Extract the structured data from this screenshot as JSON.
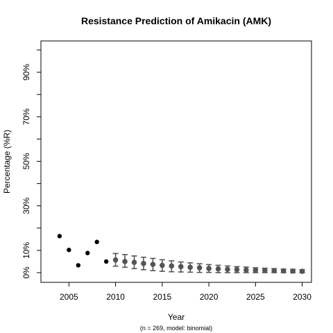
{
  "chart_data": {
    "type": "scatter",
    "title": "Resistance Prediction of Amikacin (AMK)",
    "subtitle": "(n = 269, model: binomial)",
    "xlabel": "Year",
    "ylabel": "Percentage (%R)",
    "xlim": [
      2002.0,
      2031.0
    ],
    "ylim": [
      0,
      100
    ],
    "x_ticks": [
      2005,
      2010,
      2015,
      2020,
      2025,
      2030
    ],
    "y_ticks": [
      {
        "value": 0,
        "label": "0%"
      },
      {
        "value": 10,
        "label": "10%"
      },
      {
        "value": 20,
        "label": ""
      },
      {
        "value": 30,
        "label": "30%"
      },
      {
        "value": 40,
        "label": ""
      },
      {
        "value": 50,
        "label": "50%"
      },
      {
        "value": 60,
        "label": ""
      },
      {
        "value": 70,
        "label": "70%"
      },
      {
        "value": 80,
        "label": ""
      },
      {
        "value": 90,
        "label": "90%"
      },
      {
        "value": 100,
        "label": ""
      }
    ],
    "grid": false,
    "legend": "none",
    "series": [
      {
        "kind": "observed",
        "color": "#000000",
        "points": [
          {
            "x": 2004,
            "y": 16.4
          },
          {
            "x": 2005,
            "y": 10.2
          },
          {
            "x": 2006,
            "y": 3.3
          },
          {
            "x": 2007,
            "y": 8.8
          },
          {
            "x": 2008,
            "y": 13.8
          },
          {
            "x": 2009,
            "y": 5.0
          }
        ]
      },
      {
        "kind": "predicted",
        "color": "#555555",
        "points": [
          {
            "x": 2010,
            "y": 5.7,
            "lo": 2.9,
            "hi": 8.6
          },
          {
            "x": 2011,
            "y": 5.0,
            "lo": 2.4,
            "hi": 8.1
          },
          {
            "x": 2012,
            "y": 4.6,
            "lo": 1.8,
            "hi": 7.5
          },
          {
            "x": 2013,
            "y": 4.1,
            "lo": 1.3,
            "hi": 6.9
          },
          {
            "x": 2014,
            "y": 3.7,
            "lo": 0.9,
            "hi": 6.4
          },
          {
            "x": 2015,
            "y": 3.3,
            "lo": 0.6,
            "hi": 5.8
          },
          {
            "x": 2016,
            "y": 3.0,
            "lo": 0.4,
            "hi": 5.3
          },
          {
            "x": 2017,
            "y": 2.7,
            "lo": 0.3,
            "hi": 4.8
          },
          {
            "x": 2018,
            "y": 2.4,
            "lo": 0.2,
            "hi": 4.4
          },
          {
            "x": 2019,
            "y": 2.2,
            "lo": 0.1,
            "hi": 4.0
          },
          {
            "x": 2020,
            "y": 1.9,
            "lo": 0.1,
            "hi": 3.6
          },
          {
            "x": 2021,
            "y": 1.7,
            "lo": 0.0,
            "hi": 3.3
          },
          {
            "x": 2022,
            "y": 1.5,
            "lo": 0.0,
            "hi": 3.0
          },
          {
            "x": 2023,
            "y": 1.4,
            "lo": 0.0,
            "hi": 2.7
          },
          {
            "x": 2024,
            "y": 1.2,
            "lo": 0.0,
            "hi": 2.5
          },
          {
            "x": 2025,
            "y": 1.1,
            "lo": 0.0,
            "hi": 2.2
          },
          {
            "x": 2026,
            "y": 1.0,
            "lo": 0.0,
            "hi": 2.0
          },
          {
            "x": 2027,
            "y": 0.9,
            "lo": 0.0,
            "hi": 1.8
          },
          {
            "x": 2028,
            "y": 0.8,
            "lo": 0.0,
            "hi": 1.6
          },
          {
            "x": 2029,
            "y": 0.7,
            "lo": 0.0,
            "hi": 1.5
          },
          {
            "x": 2030,
            "y": 0.6,
            "lo": 0.0,
            "hi": 1.3
          }
        ]
      }
    ]
  }
}
